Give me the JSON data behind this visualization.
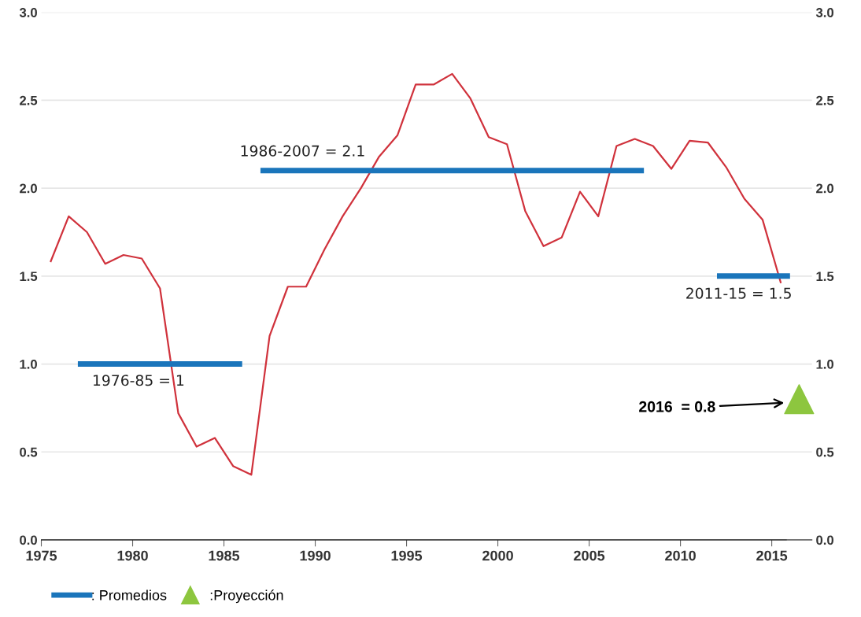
{
  "chart_data": {
    "type": "line",
    "xlim": [
      1975,
      2017.2
    ],
    "xticks": [
      1975,
      1980,
      1985,
      1990,
      1995,
      2000,
      2005,
      2010,
      2015
    ],
    "ylim": [
      0,
      3.0
    ],
    "yticks": [
      {
        "value": 0,
        "label": "0.0"
      },
      {
        "value": 0.5,
        "label": "0.5"
      },
      {
        "value": 1.0,
        "label": "1.0"
      },
      {
        "value": 1.5,
        "label": "1.5"
      },
      {
        "value": 2.0,
        "label": "2.0"
      },
      {
        "value": 2.5,
        "label": "2.5"
      },
      {
        "value": 3.0,
        "label": "3.0"
      }
    ],
    "y2lim": [
      0,
      3.0
    ],
    "y2ticks": [
      {
        "value": 0,
        "label": "0.0"
      },
      {
        "value": 0.5,
        "label": "0.5"
      },
      {
        "value": 1.0,
        "label": "1.0"
      },
      {
        "value": 1.5,
        "label": "1.5"
      },
      {
        "value": 2.0,
        "label": "2.0"
      },
      {
        "value": 2.5,
        "label": "2.5"
      },
      {
        "value": 3.0,
        "label": "3.0"
      }
    ],
    "grid": "y",
    "legend": "bottom left",
    "series": [
      {
        "color": "#d0323c",
        "x": [
          1975.5,
          1976.5,
          1977.5,
          1978.5,
          1979.5,
          1980.5,
          1981.5,
          1982.5,
          1983.5,
          1984.5,
          1985.5,
          1986.5,
          1987.5,
          1988.5,
          1989.5,
          1990.5,
          1991.5,
          1992.5,
          1993.5,
          1994.5,
          1995.5,
          1996.5,
          1997.5,
          1998.5,
          1999.5,
          2000.5,
          2001.5,
          2002.5,
          2003.5,
          2004.5,
          2005.5,
          2006.5,
          2007.5,
          2008.5,
          2009.5,
          2010.5,
          2011.5,
          2012.5,
          2013.5,
          2014.5,
          2015.5
        ],
        "values": [
          1.58,
          1.84,
          1.75,
          1.57,
          1.62,
          1.6,
          1.43,
          0.72,
          0.53,
          0.58,
          0.42,
          0.37,
          1.16,
          1.44,
          1.44,
          1.65,
          1.84,
          2.0,
          2.18,
          2.3,
          2.59,
          2.59,
          2.65,
          2.51,
          2.29,
          2.25,
          1.87,
          1.67,
          1.72,
          1.98,
          1.84,
          2.24,
          2.28,
          2.24,
          2.11,
          2.27,
          2.26,
          2.12,
          1.94,
          1.82,
          1.46
        ]
      },
      {
        "name": ": Promedios",
        "color": "#1a75bb",
        "x": [
          1977.0,
          1986.0,
          1986.5,
          1987.0,
          2008.0,
          2010.0,
          2012.0,
          2016.0
        ],
        "values": [
          1.0,
          1.0,
          null,
          2.1,
          2.1,
          null,
          1.5,
          1.5
        ]
      },
      {
        "type": "scatter",
        "name": ":Proyección",
        "color": "#8dc63f",
        "marker": "triangle",
        "x": [
          2016.5
        ],
        "values": [
          0.8
        ]
      }
    ],
    "annotations": [
      "1976-85 = 1",
      "1986-2007 = 2.1",
      "2011-15 = 1.5",
      "2016  = 0.8"
    ]
  }
}
